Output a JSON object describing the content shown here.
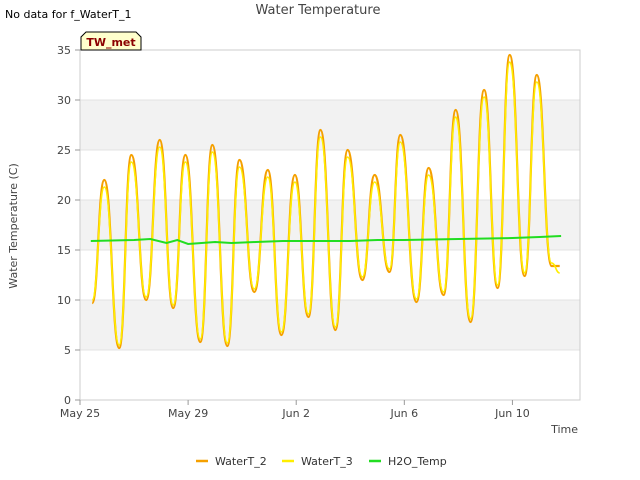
{
  "page": {
    "corner_note": "No data for f_WaterT_1",
    "site_tag": "TW_met"
  },
  "chart_data": {
    "type": "line",
    "title": "Water Temperature",
    "xlabel": "Time",
    "ylabel": "Water Temperature (C)",
    "ylim": [
      0,
      35
    ],
    "xlim": [
      0,
      18.5
    ],
    "yticks": [
      0,
      5,
      10,
      15,
      20,
      25,
      30,
      35
    ],
    "xticks": [
      {
        "value": 0,
        "label": "May 25"
      },
      {
        "value": 4,
        "label": "May 29"
      },
      {
        "value": 8,
        "label": "Jun 2"
      },
      {
        "value": 12,
        "label": "Jun 6"
      },
      {
        "value": 16,
        "label": "Jun 10"
      }
    ],
    "grid": "alternating horizontal bands",
    "legend_position": "bottom-center",
    "colors": {
      "WaterT_2": "#f5a000",
      "WaterT_3": "#ffee00",
      "H2O_Temp": "#22dd22"
    },
    "daily_extremes": {
      "x": [
        0.45,
        0.9,
        1.45,
        1.9,
        2.45,
        2.95,
        3.45,
        3.9,
        4.45,
        4.9,
        5.45,
        5.9,
        6.45,
        6.95,
        7.45,
        7.95,
        8.45,
        8.9,
        9.45,
        9.9,
        10.45,
        10.9,
        11.45,
        11.85,
        12.45,
        12.9,
        13.45,
        13.9,
        14.45,
        14.95,
        15.45,
        15.9,
        16.45,
        16.9,
        17.45,
        17.75
      ],
      "y": [
        9.7,
        22.0,
        5.2,
        24.5,
        10.0,
        26.0,
        9.2,
        24.5,
        5.8,
        25.5,
        5.4,
        24.0,
        10.8,
        23.0,
        6.5,
        22.5,
        8.3,
        27.0,
        7.0,
        25.0,
        12.0,
        22.5,
        12.8,
        26.5,
        9.8,
        23.2,
        10.5,
        29.0,
        7.8,
        31.0,
        11.2,
        34.5,
        12.4,
        32.5,
        13.4,
        13.4
      ]
    },
    "series": [
      {
        "name": "WaterT_2",
        "values_note": "follows daily_extremes"
      },
      {
        "name": "WaterT_3",
        "values_note": "follows daily_extremes, slightly lower peaks"
      },
      {
        "name": "H2O_Temp",
        "x": [
          0.4,
          2.0,
          2.6,
          3.2,
          3.6,
          4.0,
          4.5,
          5.0,
          5.6,
          6.5,
          7.5,
          8.0,
          10.0,
          11.0,
          12.0,
          14.0,
          16.0,
          17.0,
          17.8
        ],
        "y": [
          15.9,
          16.0,
          16.1,
          15.7,
          16.0,
          15.6,
          15.7,
          15.8,
          15.7,
          15.8,
          15.9,
          15.9,
          15.9,
          16.0,
          16.0,
          16.1,
          16.2,
          16.3,
          16.4
        ]
      }
    ],
    "legend": [
      "WaterT_2",
      "WaterT_3",
      "H2O_Temp"
    ]
  }
}
